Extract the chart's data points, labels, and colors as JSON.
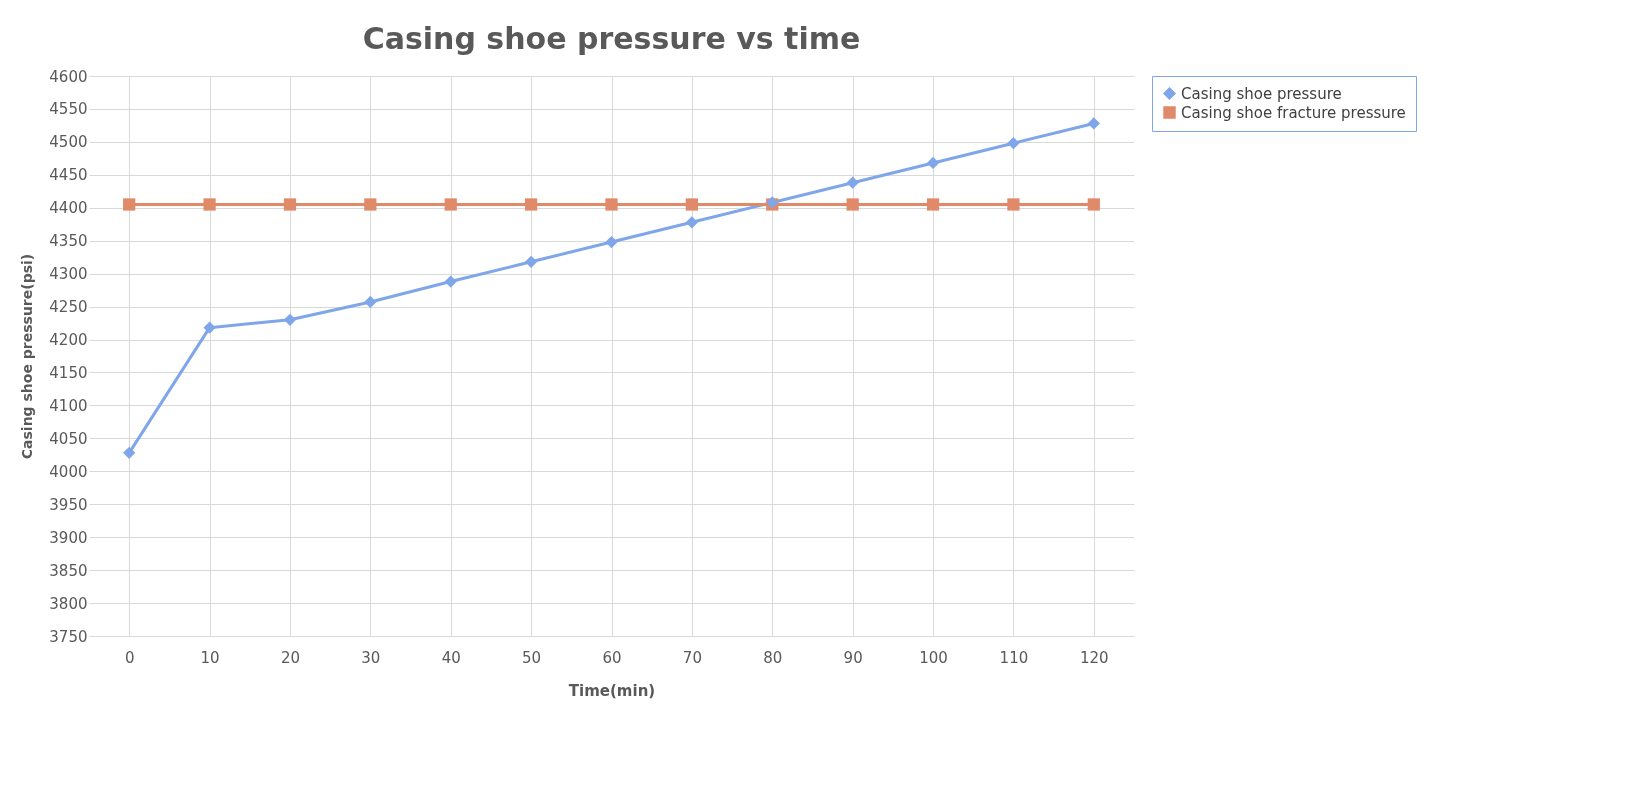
{
  "chart_data": {
    "type": "line",
    "title": "Casing shoe pressure vs time",
    "xlabel": "Time(min)",
    "ylabel": "Casing shoe pressure(psi)",
    "categories": [
      "0",
      "10",
      "20",
      "30",
      "40",
      "50",
      "60",
      "70",
      "80",
      "90",
      "100",
      "110",
      "120"
    ],
    "series": [
      {
        "name": "Casing shoe pressure",
        "color": "#7ea6e8",
        "marker": "diamond",
        "values": [
          4028,
          4218,
          4230,
          4257,
          4288,
          4318,
          4348,
          4378,
          4408,
          4438,
          4468,
          4498,
          4528
        ]
      },
      {
        "name": "Casing shoe fracture pressure",
        "color": "#e08a6a",
        "marker": "square",
        "values": [
          4405,
          4405,
          4405,
          4405,
          4405,
          4405,
          4405,
          4405,
          4405,
          4405,
          4405,
          4405,
          4405
        ]
      }
    ],
    "ylim": [
      3750,
      4600
    ],
    "yticks": [
      3750,
      3800,
      3850,
      3900,
      3950,
      4000,
      4050,
      4100,
      4150,
      4200,
      4250,
      4300,
      4350,
      4400,
      4450,
      4500,
      4550,
      4600
    ],
    "grid": true,
    "legend": "right",
    "line_style": "solid"
  }
}
